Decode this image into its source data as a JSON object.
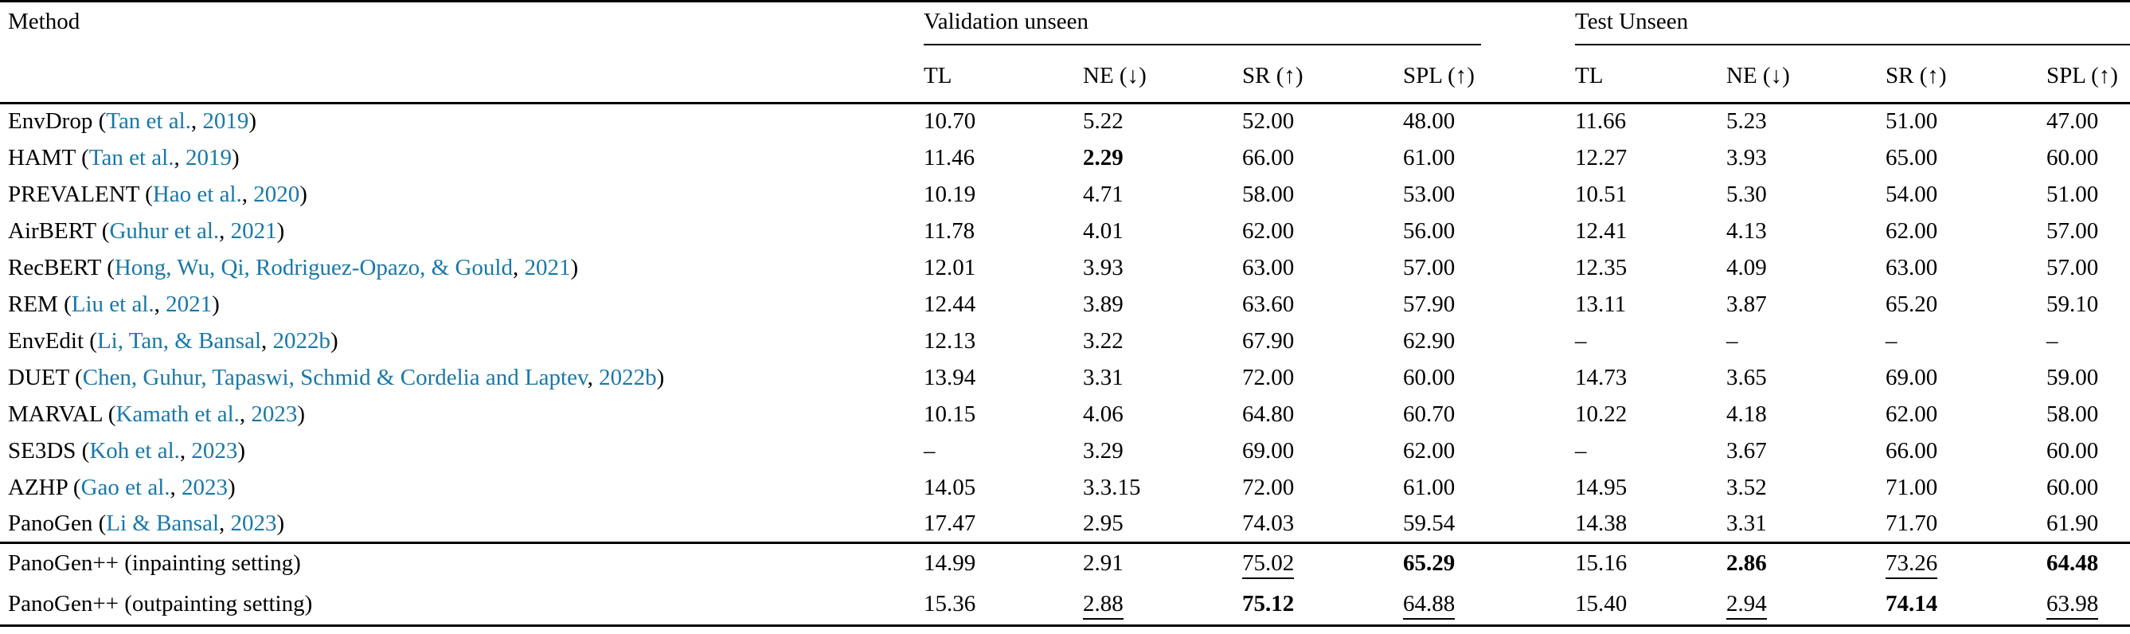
{
  "colors": {
    "citation_link": "#1878a8",
    "text": "#000000",
    "background": "#ffffff",
    "rule": "#000000"
  },
  "table": {
    "method_header": "Method",
    "groups": [
      {
        "label": "Validation unseen"
      },
      {
        "label": "Test Unseen"
      }
    ],
    "metric_headers": [
      "TL",
      "NE (↓)",
      "SR (↑)",
      "SPL (↑)",
      "TL",
      "NE (↓)",
      "SR (↑)",
      "SPL (↑)"
    ],
    "column_keys": [
      "val-tl",
      "val-ne",
      "val-sr",
      "val-spl",
      "test-tl",
      "test-ne",
      "test-sr",
      "test-spl"
    ],
    "baseline_rows": [
      {
        "method": "EnvDrop",
        "authors": "Tan et al.",
        "year": "2019",
        "cells": [
          {
            "t": "10.70"
          },
          {
            "t": "5.22"
          },
          {
            "t": "52.00"
          },
          {
            "t": "48.00"
          },
          {
            "t": "11.66"
          },
          {
            "t": "5.23"
          },
          {
            "t": "51.00"
          },
          {
            "t": "47.00"
          }
        ]
      },
      {
        "method": "HAMT",
        "authors": "Tan et al.",
        "year": "2019",
        "cells": [
          {
            "t": "11.46"
          },
          {
            "t": "2.29",
            "b": true
          },
          {
            "t": "66.00"
          },
          {
            "t": "61.00"
          },
          {
            "t": "12.27"
          },
          {
            "t": "3.93"
          },
          {
            "t": "65.00"
          },
          {
            "t": "60.00"
          }
        ]
      },
      {
        "method": "PREVALENT",
        "authors": "Hao et al.",
        "year": "2020",
        "cells": [
          {
            "t": "10.19"
          },
          {
            "t": "4.71"
          },
          {
            "t": "58.00"
          },
          {
            "t": "53.00"
          },
          {
            "t": "10.51"
          },
          {
            "t": "5.30"
          },
          {
            "t": "54.00"
          },
          {
            "t": "51.00"
          }
        ]
      },
      {
        "method": "AirBERT",
        "authors": "Guhur et al.",
        "year": "2021",
        "cells": [
          {
            "t": "11.78"
          },
          {
            "t": "4.01"
          },
          {
            "t": "62.00"
          },
          {
            "t": "56.00"
          },
          {
            "t": "12.41"
          },
          {
            "t": "4.13"
          },
          {
            "t": "62.00"
          },
          {
            "t": "57.00"
          }
        ]
      },
      {
        "method": "RecBERT",
        "authors": "Hong, Wu, Qi, Rodriguez-Opazo, & Gould",
        "year": "2021",
        "cells": [
          {
            "t": "12.01"
          },
          {
            "t": "3.93"
          },
          {
            "t": "63.00"
          },
          {
            "t": "57.00"
          },
          {
            "t": "12.35"
          },
          {
            "t": "4.09"
          },
          {
            "t": "63.00"
          },
          {
            "t": "57.00"
          }
        ]
      },
      {
        "method": "REM",
        "authors": "Liu et al.",
        "year": "2021",
        "cells": [
          {
            "t": "12.44"
          },
          {
            "t": "3.89"
          },
          {
            "t": "63.60"
          },
          {
            "t": "57.90"
          },
          {
            "t": "13.11"
          },
          {
            "t": "3.87"
          },
          {
            "t": "65.20"
          },
          {
            "t": "59.10"
          }
        ]
      },
      {
        "method": "EnvEdit",
        "authors": "Li, Tan, & Bansal",
        "year": "2022b",
        "cells": [
          {
            "t": "12.13"
          },
          {
            "t": "3.22"
          },
          {
            "t": "67.90"
          },
          {
            "t": "62.90"
          },
          {
            "t": "–"
          },
          {
            "t": "–"
          },
          {
            "t": "–"
          },
          {
            "t": "–"
          }
        ]
      },
      {
        "method": "DUET",
        "authors": "Chen, Guhur, Tapaswi, Schmid & Cordelia and Laptev",
        "year": "2022b",
        "cells": [
          {
            "t": "13.94"
          },
          {
            "t": "3.31"
          },
          {
            "t": "72.00"
          },
          {
            "t": "60.00"
          },
          {
            "t": "14.73"
          },
          {
            "t": "3.65"
          },
          {
            "t": "69.00"
          },
          {
            "t": "59.00"
          }
        ]
      },
      {
        "method": "MARVAL",
        "authors": "Kamath et al.",
        "year": "2023",
        "cells": [
          {
            "t": "10.15"
          },
          {
            "t": "4.06"
          },
          {
            "t": "64.80"
          },
          {
            "t": "60.70"
          },
          {
            "t": "10.22"
          },
          {
            "t": "4.18"
          },
          {
            "t": "62.00"
          },
          {
            "t": "58.00"
          }
        ]
      },
      {
        "method": "SE3DS",
        "authors": "Koh et al.",
        "year": "2023",
        "cells": [
          {
            "t": "–"
          },
          {
            "t": "3.29"
          },
          {
            "t": "69.00"
          },
          {
            "t": "62.00"
          },
          {
            "t": "–"
          },
          {
            "t": "3.67"
          },
          {
            "t": "66.00"
          },
          {
            "t": "60.00"
          }
        ]
      },
      {
        "method": "AZHP",
        "authors": "Gao et al.",
        "year": "2023",
        "cells": [
          {
            "t": "14.05"
          },
          {
            "t": "3.3.15"
          },
          {
            "t": "72.00"
          },
          {
            "t": "61.00"
          },
          {
            "t": "14.95"
          },
          {
            "t": "3.52"
          },
          {
            "t": "71.00"
          },
          {
            "t": "60.00"
          }
        ]
      },
      {
        "method": "PanoGen",
        "authors": "Li & Bansal",
        "year": "2023",
        "cells": [
          {
            "t": "17.47"
          },
          {
            "t": "2.95"
          },
          {
            "t": "74.03"
          },
          {
            "t": "59.54"
          },
          {
            "t": "14.38"
          },
          {
            "t": "3.31"
          },
          {
            "t": "71.70"
          },
          {
            "t": "61.90"
          }
        ]
      }
    ],
    "ours_rows": [
      {
        "method": "PanoGen++ (inpainting setting)",
        "cells": [
          {
            "t": "14.99"
          },
          {
            "t": "2.91"
          },
          {
            "t": "75.02",
            "u": true
          },
          {
            "t": "65.29",
            "b": true
          },
          {
            "t": "15.16"
          },
          {
            "t": "2.86",
            "b": true
          },
          {
            "t": "73.26",
            "u": true
          },
          {
            "t": "64.48",
            "b": true
          }
        ]
      },
      {
        "method": "PanoGen++ (outpainting setting)",
        "cells": [
          {
            "t": "15.36"
          },
          {
            "t": "2.88",
            "u": true
          },
          {
            "t": "75.12",
            "b": true
          },
          {
            "t": "64.88",
            "u": true
          },
          {
            "t": "15.40"
          },
          {
            "t": "2.94",
            "u": true
          },
          {
            "t": "74.14",
            "b": true
          },
          {
            "t": "63.98",
            "u": true
          }
        ]
      }
    ]
  }
}
